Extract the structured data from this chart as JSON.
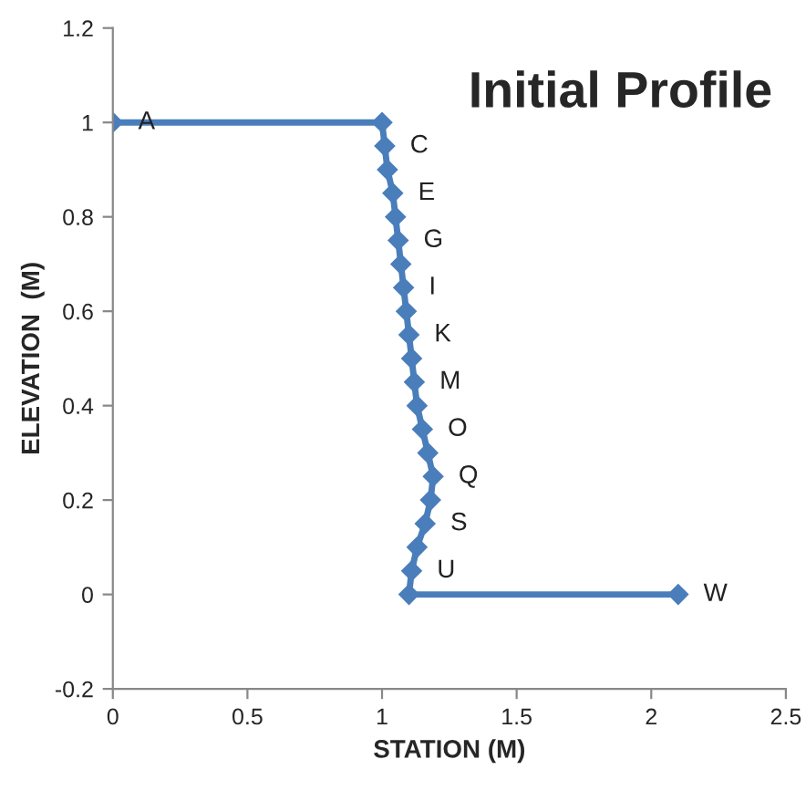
{
  "chart_data": {
    "type": "line",
    "title": "Initial Profile",
    "xlabel": "STATION (M)",
    "ylabel": "ELEVATION  (M)",
    "series": [
      {
        "color": "#4a7ebb",
        "x": [
          0,
          1,
          1.01,
          1.02,
          1.04,
          1.05,
          1.06,
          1.07,
          1.08,
          1.09,
          1.1,
          1.11,
          1.12,
          1.13,
          1.15,
          1.17,
          1.19,
          1.18,
          1.16,
          1.13,
          1.11,
          1.1,
          2.1
        ],
        "values": [
          1,
          1,
          0.95,
          0.9,
          0.85,
          0.8,
          0.75,
          0.7,
          0.65,
          0.6,
          0.55,
          0.5,
          0.45,
          0.4,
          0.35,
          0.3,
          0.25,
          0.2,
          0.15,
          0.1,
          0.05,
          0,
          0
        ]
      }
    ],
    "annotations": [
      {
        "text": "A",
        "x": 0,
        "y": 1
      },
      {
        "text": "C",
        "x": 1.01,
        "y": 0.95
      },
      {
        "text": "E",
        "x": 1.04,
        "y": 0.85
      },
      {
        "text": "G",
        "x": 1.06,
        "y": 0.75
      },
      {
        "text": "I",
        "x": 1.08,
        "y": 0.65
      },
      {
        "text": "K",
        "x": 1.1,
        "y": 0.55
      },
      {
        "text": "M",
        "x": 1.12,
        "y": 0.45
      },
      {
        "text": "O",
        "x": 1.15,
        "y": 0.35
      },
      {
        "text": "Q",
        "x": 1.19,
        "y": 0.25
      },
      {
        "text": "S",
        "x": 1.16,
        "y": 0.15
      },
      {
        "text": "U",
        "x": 1.11,
        "y": 0.05
      },
      {
        "text": "W",
        "x": 2.1,
        "y": 0
      }
    ],
    "xlim": [
      0,
      2.5
    ],
    "xticks": [
      0,
      0.5,
      1,
      1.5,
      2,
      2.5
    ],
    "ylim": [
      -0.2,
      1.2
    ],
    "yticks": [
      -0.2,
      0,
      0.2,
      0.4,
      0.6,
      0.8,
      1,
      1.2
    ],
    "marker": "diamond",
    "line_style": "solid",
    "grid": false,
    "legend": false
  }
}
